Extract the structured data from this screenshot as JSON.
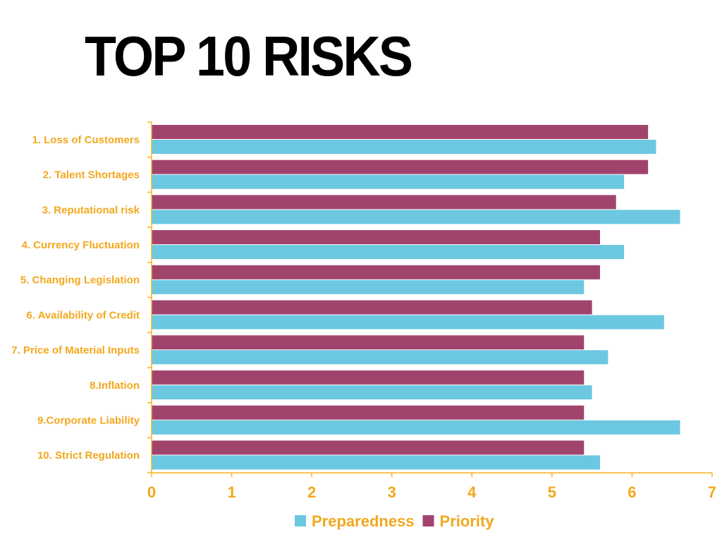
{
  "title": "TOP 10 RISKS",
  "colors": {
    "axis": "#F5B21F",
    "label": "#F2A81D",
    "preparedness": "#6CC8E0",
    "priority": "#A0446E"
  },
  "chart_data": {
    "type": "bar",
    "orientation": "horizontal",
    "categories": [
      "1. Loss of Customers",
      "2. Talent Shortages",
      "3. Reputational risk",
      "4. Currency Fluctuation",
      "5. Changing Legislation",
      "6. Availability of Credit",
      "7. Price of Material Inputs",
      "8.Inflation",
      "9.Corporate Liability",
      "10. Strict Regulation"
    ],
    "series": [
      {
        "name": "Priority",
        "color": "#A0446E",
        "values": [
          6.2,
          6.2,
          5.8,
          5.6,
          5.6,
          5.5,
          5.4,
          5.4,
          5.4,
          5.4
        ]
      },
      {
        "name": "Preparedness",
        "color": "#6CC8E0",
        "values": [
          6.3,
          5.9,
          6.6,
          5.9,
          5.4,
          6.4,
          5.7,
          5.5,
          6.6,
          5.6
        ]
      }
    ],
    "xlim": [
      0,
      7
    ],
    "xticks": [
      0,
      1,
      2,
      3,
      4,
      5,
      6,
      7
    ],
    "grid": false,
    "legend": {
      "position": "bottom",
      "entries": [
        "Preparedness",
        "Priority"
      ]
    }
  }
}
